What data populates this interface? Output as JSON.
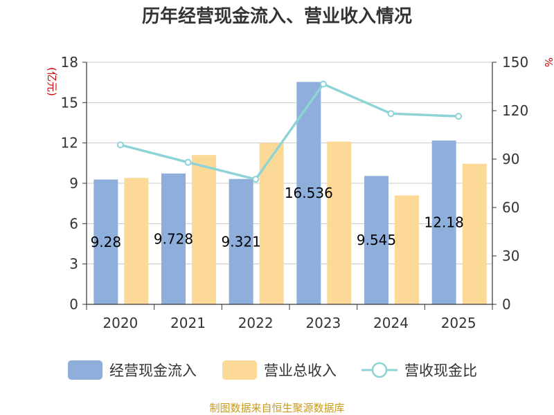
{
  "chart_data": {
    "type": "bar",
    "title": "历年经营现金流入、营业收入情况",
    "categories": [
      "2020",
      "2021",
      "2022",
      "2023",
      "2024",
      "2025"
    ],
    "y_left": {
      "label": "(亿元)",
      "lim": [
        0,
        18
      ],
      "ticks": [
        "0",
        "3",
        "6",
        "9",
        "12",
        "15",
        "18"
      ]
    },
    "y_right": {
      "label": "%",
      "lim": [
        0,
        150
      ],
      "ticks": [
        "0",
        "30",
        "60",
        "90",
        "120",
        "150"
      ]
    },
    "series": [
      {
        "name": "经营现金流入",
        "type": "bar",
        "axis": "left",
        "color": "#8eaedb",
        "values": [
          9.28,
          9.728,
          9.321,
          16.536,
          9.545,
          12.18
        ],
        "labels": [
          "9.28",
          "9.728",
          "9.321",
          "16.536",
          "9.545",
          "12.18"
        ]
      },
      {
        "name": "营业总收入",
        "type": "bar",
        "axis": "left",
        "color": "#fdd998",
        "values": [
          9.4,
          11.1,
          12.0,
          12.1,
          8.1,
          10.45
        ]
      },
      {
        "name": "营收现金比",
        "type": "line",
        "axis": "right",
        "color": "#8ed3d6",
        "values": [
          98.8,
          88.0,
          77.5,
          136.5,
          118.2,
          116.5
        ]
      }
    ],
    "grid": true,
    "legend": "bottom"
  },
  "source": "制图数据来自恒生聚源数据库"
}
